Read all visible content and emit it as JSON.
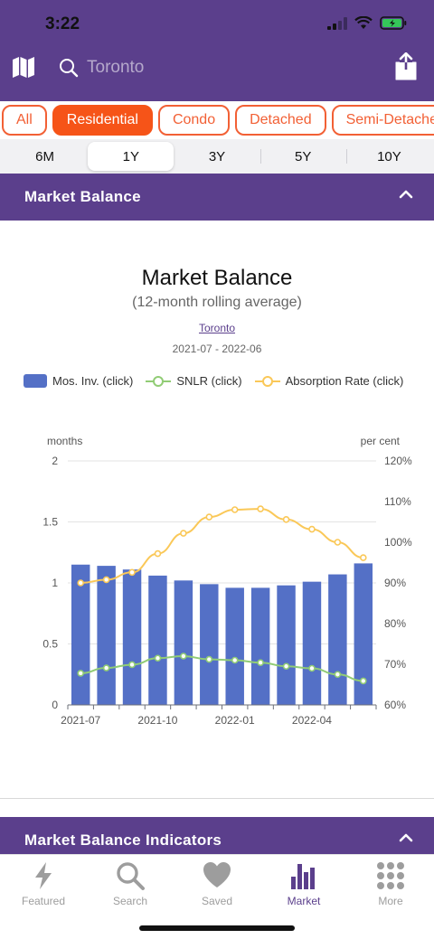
{
  "status": {
    "time": "3:22"
  },
  "header": {
    "search_placeholder": "Toronto"
  },
  "filters": [
    {
      "label": "All",
      "active": false
    },
    {
      "label": "Residential",
      "active": true
    },
    {
      "label": "Condo",
      "active": false
    },
    {
      "label": "Detached",
      "active": false
    },
    {
      "label": "Semi-Detached",
      "active": false
    }
  ],
  "periods": [
    {
      "label": "6M",
      "selected": false
    },
    {
      "label": "1Y",
      "selected": true
    },
    {
      "label": "3Y",
      "selected": false
    },
    {
      "label": "5Y",
      "selected": false
    },
    {
      "label": "10Y",
      "selected": false
    }
  ],
  "section1": {
    "title": "Market Balance"
  },
  "section2": {
    "title": "Market Balance Indicators"
  },
  "chart": {
    "title": "Market Balance",
    "subtitle": "(12-month rolling average)",
    "region_link": "Toronto",
    "date_range": "2021-07 - 2022-06",
    "legend": [
      "Mos. Inv. (click)",
      "SNLR (click)",
      "Absorption Rate (click)"
    ],
    "left_axis_label": "months",
    "right_axis_label": "per cent"
  },
  "chart_data": {
    "type": "bar",
    "categories": [
      "2021-07",
      "2021-08",
      "2021-09",
      "2021-10",
      "2021-11",
      "2021-12",
      "2022-01",
      "2022-02",
      "2022-03",
      "2022-04",
      "2022-05",
      "2022-06"
    ],
    "x_tick_labels": [
      "2021-07",
      "2021-10",
      "2022-01",
      "2022-04"
    ],
    "left_axis": {
      "label": "months",
      "ylim": [
        0,
        2
      ],
      "ticks": [
        "0",
        "0.5",
        "1",
        "1.5",
        "2"
      ]
    },
    "right_axis": {
      "label": "per cent",
      "ylim": [
        60,
        120
      ],
      "ticks": [
        "60%",
        "70%",
        "80%",
        "90%",
        "100%",
        "110%",
        "120%"
      ]
    },
    "grid": true,
    "legend_position": "top-left",
    "series": [
      {
        "name": "Mos. Inv. (click)",
        "type": "bar",
        "axis": "left",
        "color": "#5470c6",
        "values": [
          1.15,
          1.14,
          1.11,
          1.06,
          1.02,
          0.99,
          0.96,
          0.96,
          0.98,
          1.01,
          1.07,
          1.16
        ]
      },
      {
        "name": "SNLR (click)",
        "type": "line",
        "axis": "right",
        "color": "#91cc75",
        "values": [
          67.8,
          69.1,
          69.9,
          71.5,
          72.0,
          71.2,
          71.0,
          70.4,
          69.5,
          69.0,
          67.5,
          65.9
        ]
      },
      {
        "name": "Absorption Rate (click)",
        "type": "line",
        "axis": "right",
        "color": "#fac858",
        "values": [
          90.0,
          90.8,
          92.6,
          97.2,
          102.2,
          106.2,
          108.0,
          108.2,
          105.6,
          103.2,
          100.0,
          96.2
        ]
      }
    ]
  },
  "tabs": [
    {
      "label": "Featured",
      "icon": "bolt-icon",
      "active": false
    },
    {
      "label": "Search",
      "icon": "search-icon",
      "active": false
    },
    {
      "label": "Saved",
      "icon": "heart-icon",
      "active": false
    },
    {
      "label": "Market",
      "icon": "bar-chart-icon",
      "active": true
    },
    {
      "label": "More",
      "icon": "grid-dots-icon",
      "active": false
    }
  ]
}
